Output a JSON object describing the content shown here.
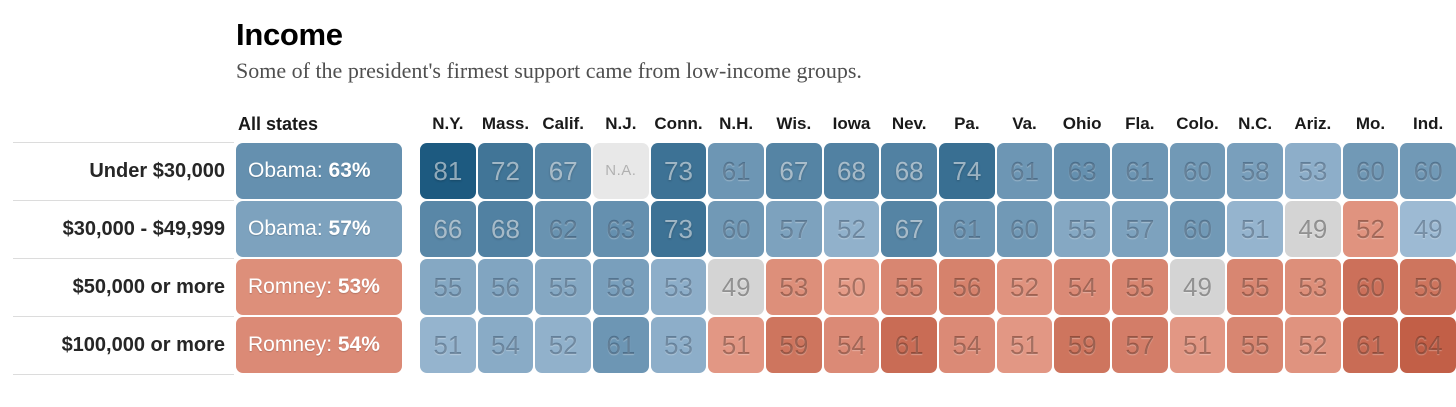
{
  "header": {
    "title": "Income",
    "subtitle": "Some of the president's firmest support came from low-income groups.",
    "all_states_label": "All states"
  },
  "chart_data": {
    "type": "heatmap",
    "title": "Income",
    "subtitle": "Some of the president's firmest support came from low-income groups.",
    "all_states_label": "All states",
    "columns": [
      "N.Y.",
      "Mass.",
      "Calif.",
      "N.J.",
      "Conn.",
      "N.H.",
      "Wis.",
      "Iowa",
      "Nev.",
      "Pa.",
      "Va.",
      "Ohio",
      "Fla.",
      "Colo.",
      "N.C.",
      "Ariz.",
      "Mo.",
      "Ind."
    ],
    "party_key": {
      "D": "Obama (blue)",
      "R": "Romney (red)",
      "T": "tie/no winner (gray)",
      "NA": "no data"
    },
    "na_label": "N.A.",
    "rows": [
      {
        "label": "Under $30,000",
        "all_states": {
          "candidate": "Obama",
          "pct": 63,
          "party": "D"
        },
        "cells": [
          {
            "v": 81,
            "p": "D"
          },
          {
            "v": 72,
            "p": "D"
          },
          {
            "v": 67,
            "p": "D"
          },
          {
            "v": null,
            "p": "NA"
          },
          {
            "v": 73,
            "p": "D"
          },
          {
            "v": 61,
            "p": "D"
          },
          {
            "v": 67,
            "p": "D"
          },
          {
            "v": 68,
            "p": "D"
          },
          {
            "v": 68,
            "p": "D"
          },
          {
            "v": 74,
            "p": "D"
          },
          {
            "v": 61,
            "p": "D"
          },
          {
            "v": 63,
            "p": "D"
          },
          {
            "v": 61,
            "p": "D"
          },
          {
            "v": 60,
            "p": "D"
          },
          {
            "v": 58,
            "p": "D"
          },
          {
            "v": 53,
            "p": "D"
          },
          {
            "v": 60,
            "p": "D"
          },
          {
            "v": 60,
            "p": "D"
          }
        ]
      },
      {
        "label": "$30,000 - $49,999",
        "all_states": {
          "candidate": "Obama",
          "pct": 57,
          "party": "D"
        },
        "cells": [
          {
            "v": 66,
            "p": "D"
          },
          {
            "v": 68,
            "p": "D"
          },
          {
            "v": 62,
            "p": "D"
          },
          {
            "v": 63,
            "p": "D"
          },
          {
            "v": 73,
            "p": "D"
          },
          {
            "v": 60,
            "p": "D"
          },
          {
            "v": 57,
            "p": "D"
          },
          {
            "v": 52,
            "p": "D"
          },
          {
            "v": 67,
            "p": "D"
          },
          {
            "v": 61,
            "p": "D"
          },
          {
            "v": 60,
            "p": "D"
          },
          {
            "v": 55,
            "p": "D"
          },
          {
            "v": 57,
            "p": "D"
          },
          {
            "v": 60,
            "p": "D"
          },
          {
            "v": 51,
            "p": "D"
          },
          {
            "v": 49,
            "p": "T"
          },
          {
            "v": 52,
            "p": "R"
          },
          {
            "v": 49,
            "p": "D"
          }
        ]
      },
      {
        "label": "$50,000 or more",
        "all_states": {
          "candidate": "Romney",
          "pct": 53,
          "party": "R"
        },
        "cells": [
          {
            "v": 55,
            "p": "D"
          },
          {
            "v": 56,
            "p": "D"
          },
          {
            "v": 55,
            "p": "D"
          },
          {
            "v": 58,
            "p": "D"
          },
          {
            "v": 53,
            "p": "D"
          },
          {
            "v": 49,
            "p": "T"
          },
          {
            "v": 53,
            "p": "R"
          },
          {
            "v": 50,
            "p": "R"
          },
          {
            "v": 55,
            "p": "R"
          },
          {
            "v": 56,
            "p": "R"
          },
          {
            "v": 52,
            "p": "R"
          },
          {
            "v": 54,
            "p": "R"
          },
          {
            "v": 55,
            "p": "R"
          },
          {
            "v": 49,
            "p": "T"
          },
          {
            "v": 55,
            "p": "R"
          },
          {
            "v": 53,
            "p": "R"
          },
          {
            "v": 60,
            "p": "R"
          },
          {
            "v": 59,
            "p": "R"
          }
        ]
      },
      {
        "label": "$100,000 or more",
        "all_states": {
          "candidate": "Romney",
          "pct": 54,
          "party": "R"
        },
        "cells": [
          {
            "v": 51,
            "p": "D"
          },
          {
            "v": 54,
            "p": "D"
          },
          {
            "v": 52,
            "p": "D"
          },
          {
            "v": 61,
            "p": "D"
          },
          {
            "v": 53,
            "p": "D"
          },
          {
            "v": 51,
            "p": "R"
          },
          {
            "v": 59,
            "p": "R"
          },
          {
            "v": 54,
            "p": "R"
          },
          {
            "v": 61,
            "p": "R"
          },
          {
            "v": 54,
            "p": "R"
          },
          {
            "v": 51,
            "p": "R"
          },
          {
            "v": 59,
            "p": "R"
          },
          {
            "v": 57,
            "p": "R"
          },
          {
            "v": 51,
            "p": "R"
          },
          {
            "v": 55,
            "p": "R"
          },
          {
            "v": 52,
            "p": "R"
          },
          {
            "v": 61,
            "p": "R"
          },
          {
            "v": 64,
            "p": "R"
          }
        ]
      }
    ],
    "color_scale": {
      "obama_light": "#9dbad3",
      "obama_dark": "#1d5a80",
      "obama_domain": [
        49,
        81
      ],
      "romney_light": "#e7a08d",
      "romney_dark": "#c25f47",
      "romney_domain": [
        49,
        64
      ],
      "tie_bg": "#d4d4d4",
      "na_bg": "#e8e8e8",
      "light_text_threshold": 66
    }
  }
}
